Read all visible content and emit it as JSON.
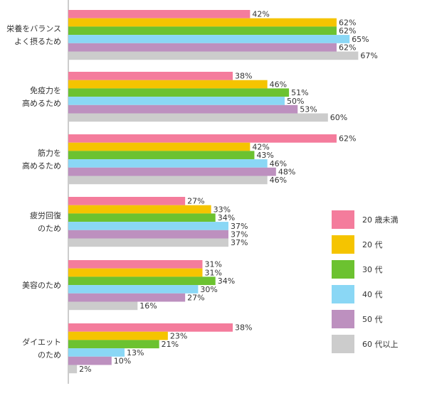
{
  "chart_data": {
    "type": "bar",
    "orientation": "horizontal",
    "categories": [
      [
        "栄養をバランス",
        "よく摂るため"
      ],
      [
        "免疫力を",
        "高めるため"
      ],
      [
        "筋力を",
        "高めるため"
      ],
      [
        "疲労回復",
        "のため"
      ],
      [
        "美容のため"
      ],
      [
        "ダイエット",
        "のため"
      ]
    ],
    "series": [
      {
        "name": "20 歳未満",
        "color": "#f47c9c",
        "values": [
          42,
          38,
          62,
          27,
          31,
          38
        ]
      },
      {
        "name": "20 代",
        "color": "#f5c400",
        "values": [
          62,
          46,
          42,
          33,
          31,
          23
        ]
      },
      {
        "name": "30 代",
        "color": "#6cc230",
        "values": [
          62,
          51,
          43,
          34,
          34,
          21
        ]
      },
      {
        "name": "40 代",
        "color": "#8ad7f5",
        "values": [
          65,
          50,
          46,
          37,
          30,
          13
        ]
      },
      {
        "name": "50 代",
        "color": "#bd90bf",
        "values": [
          62,
          53,
          48,
          37,
          27,
          10
        ]
      },
      {
        "name": "60 代以上",
        "color": "#cccccc",
        "values": [
          67,
          60,
          46,
          37,
          16,
          2
        ]
      }
    ],
    "value_suffix": "%",
    "xlim": [
      0,
      100
    ],
    "legend_position": "right",
    "grid": false
  }
}
